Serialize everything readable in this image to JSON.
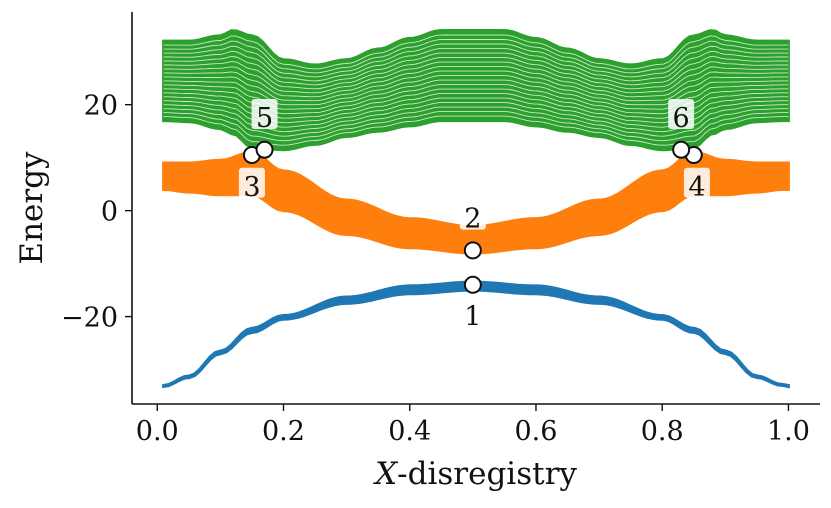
{
  "chart_data": {
    "type": "line",
    "title": "",
    "xlabel": "X-disregistry",
    "ylabel": "Energy",
    "xlim": [
      -0.04,
      1.05
    ],
    "ylim": [
      -36.5,
      37.5
    ],
    "grid": false,
    "xticks": [
      0.0,
      0.2,
      0.4,
      0.6,
      0.8,
      1.0
    ],
    "xtick_labels": [
      "0.0",
      "0.2",
      "0.4",
      "0.6",
      "0.8",
      "1.0"
    ],
    "yticks": [
      -20,
      0,
      20
    ],
    "ytick_labels": [
      "−20",
      "0",
      "20"
    ],
    "colors": {
      "blue": "#1f77b4",
      "orange": "#ff7f0e",
      "green": "#2ca02c"
    },
    "bands": [
      {
        "color": "#1f77b4",
        "x": [
          0.01,
          0.05,
          0.1,
          0.15,
          0.2,
          0.3,
          0.4,
          0.5,
          0.6,
          0.7,
          0.8,
          0.85,
          0.9,
          0.95,
          0.99,
          1.0
        ],
        "lower": [
          -33.2,
          -31.5,
          -27.0,
          -23.0,
          -20.5,
          -17.5,
          -15.7,
          -15.0,
          -15.7,
          -17.5,
          -20.5,
          -23.0,
          -27.0,
          -31.5,
          -33.0,
          -33.2
        ],
        "upper": [
          -33.0,
          -31.2,
          -26.5,
          -22.2,
          -19.8,
          -16.3,
          -14.2,
          -13.5,
          -14.2,
          -16.3,
          -19.8,
          -22.2,
          -26.5,
          -31.2,
          -32.8,
          -33.0
        ]
      },
      {
        "color": "#ff7f0e",
        "x": [
          0.01,
          0.05,
          0.1,
          0.15,
          0.2,
          0.3,
          0.4,
          0.5,
          0.6,
          0.7,
          0.8,
          0.85,
          0.9,
          0.95,
          0.99,
          1.0
        ],
        "lower": [
          4.0,
          3.5,
          3.0,
          3.0,
          0.0,
          -4.5,
          -7.0,
          -8.0,
          -7.0,
          -4.5,
          0.0,
          3.0,
          3.0,
          3.5,
          4.0,
          4.0
        ],
        "upper": [
          9.0,
          9.0,
          9.5,
          11.0,
          7.5,
          2.0,
          -1.5,
          -3.0,
          -1.5,
          2.0,
          7.5,
          11.0,
          9.5,
          9.0,
          9.0,
          9.0
        ]
      },
      {
        "color": "#2ca02c",
        "x": [
          0.01,
          0.05,
          0.1,
          0.12,
          0.15,
          0.2,
          0.25,
          0.3,
          0.35,
          0.4,
          0.45,
          0.5,
          0.55,
          0.6,
          0.65,
          0.7,
          0.75,
          0.8,
          0.85,
          0.88,
          0.9,
          0.95,
          0.99,
          1.0
        ],
        "lower": [
          17.0,
          16.8,
          15.5,
          14.5,
          12.0,
          11.5,
          12.5,
          14.0,
          15.0,
          16.0,
          17.0,
          17.0,
          17.0,
          16.0,
          15.0,
          14.0,
          12.5,
          11.5,
          12.0,
          14.5,
          15.5,
          16.8,
          17.0,
          17.0
        ],
        "upper": [
          32.0,
          32.0,
          33.0,
          34.0,
          33.0,
          28.5,
          27.5,
          28.5,
          30.5,
          32.5,
          34.0,
          34.0,
          34.0,
          32.5,
          30.5,
          28.5,
          27.5,
          28.5,
          33.0,
          34.0,
          33.0,
          32.0,
          32.0,
          32.0
        ],
        "n_lines": 20
      }
    ],
    "points": [
      {
        "label": "1",
        "x": 0.5,
        "y": -14.0,
        "label_x": 0.5,
        "label_y": -20.0
      },
      {
        "label": "2",
        "x": 0.5,
        "y": -7.5,
        "label_x": 0.5,
        "label_y": -1.5
      },
      {
        "label": "3",
        "x": 0.15,
        "y": 10.5,
        "label_x": 0.15,
        "label_y": 4.5
      },
      {
        "label": "4",
        "x": 0.85,
        "y": 10.5,
        "label_x": 0.855,
        "label_y": 4.5
      },
      {
        "label": "5",
        "x": 0.17,
        "y": 11.5,
        "label_x": 0.17,
        "label_y": 17.5
      },
      {
        "label": "6",
        "x": 0.83,
        "y": 11.5,
        "label_x": 0.83,
        "label_y": 17.5
      }
    ]
  }
}
